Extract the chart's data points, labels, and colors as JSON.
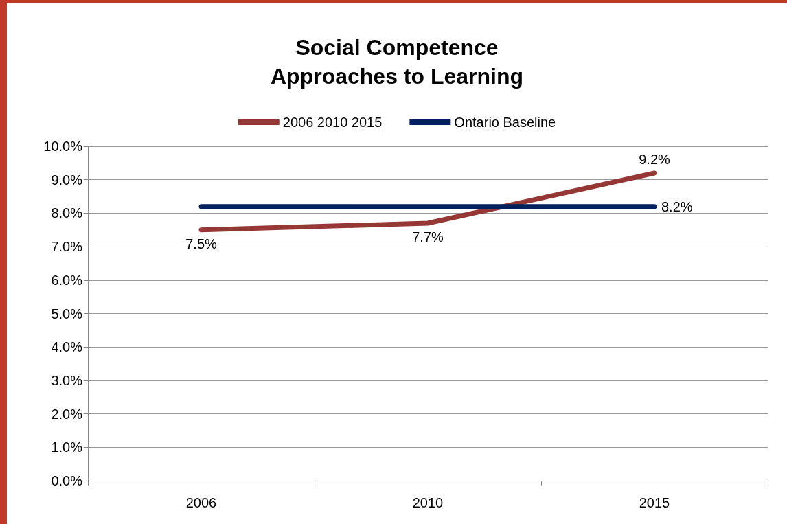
{
  "chart_data": {
    "type": "line",
    "title": "Social Competence\nApproaches to Learning",
    "categories": [
      "2006",
      "2010",
      "2015"
    ],
    "series": [
      {
        "name": "2006 2010 2015",
        "color": "#953735",
        "values": [
          7.5,
          7.7,
          9.2
        ],
        "value_labels": [
          "7.5%",
          "7.7%",
          "9.2%"
        ]
      },
      {
        "name": "Ontario Baseline",
        "color": "#002060",
        "values": [
          8.2,
          8.2,
          8.2
        ],
        "value_labels": [
          null,
          null,
          "8.2%"
        ]
      }
    ],
    "ylim": [
      0,
      10
    ],
    "yticks": [
      {
        "value": 0,
        "label": "0.0%"
      },
      {
        "value": 1,
        "label": "1.0%"
      },
      {
        "value": 2,
        "label": "2.0%"
      },
      {
        "value": 3,
        "label": "3.0%"
      },
      {
        "value": 4,
        "label": "4.0%"
      },
      {
        "value": 5,
        "label": "5.0%"
      },
      {
        "value": 6,
        "label": "6.0%"
      },
      {
        "value": 7,
        "label": "7.0%"
      },
      {
        "value": 8,
        "label": "8.0%"
      },
      {
        "value": 9,
        "label": "9.0%"
      },
      {
        "value": 10,
        "label": "10.0%"
      }
    ],
    "grid": "y",
    "legend": "top",
    "marker": "none",
    "line_style": "solid"
  }
}
